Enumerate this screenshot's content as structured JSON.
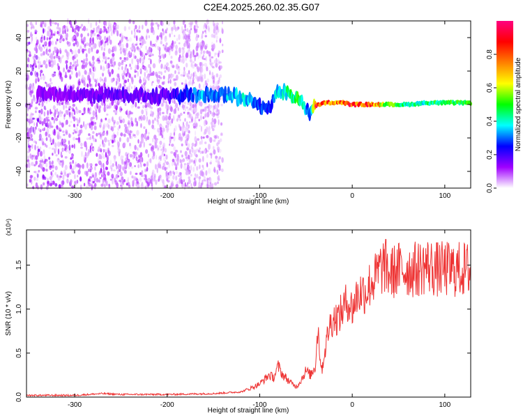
{
  "chart_data": [
    {
      "type": "heatmap",
      "title": "C2E4.2025.260.02.35.G07",
      "xlabel": "Height of straight line (km)",
      "ylabel": "Frequency (Hz)",
      "xlim": [
        -352,
        128
      ],
      "ylim": [
        -50,
        50
      ],
      "xticks": [
        -300,
        -200,
        -100,
        0,
        100
      ],
      "xtick_labels": [
        "-300",
        "-200",
        "-100",
        "0",
        "100"
      ],
      "yticks": [
        -40,
        -20,
        0,
        20,
        40
      ],
      "ytick_labels": [
        "-40",
        "-20",
        "0",
        "20",
        "40"
      ],
      "colorbar": {
        "label": "Normalized spectral amplitude",
        "range": [
          0.0,
          1.0
        ],
        "ticks": [
          0.0,
          0.2,
          0.4,
          0.6,
          0.8
        ],
        "tick_labels": [
          "0.0",
          "0.2",
          "0.4",
          "0.6",
          "0.8"
        ],
        "colors": [
          "#ffffff",
          "#a000ff",
          "#0000ff",
          "#00ffff",
          "#00ff00",
          "#ffff00",
          "#ff8000",
          "#ff0000",
          "#ff0080"
        ]
      },
      "ridge": {
        "x": [
          -340,
          -300,
          -260,
          -220,
          -200,
          -180,
          -160,
          -140,
          -120,
          -100,
          -90,
          -80,
          -70,
          -60,
          -55,
          -50,
          -45,
          -40,
          -30,
          -20,
          -10,
          0,
          20,
          40,
          60,
          80,
          100,
          120
        ],
        "freq": [
          6,
          6,
          6,
          5,
          5,
          6,
          6,
          6,
          4,
          0,
          -3,
          8,
          7,
          5,
          2,
          -2,
          -5,
          -1,
          1,
          1,
          1,
          0,
          0,
          0,
          0,
          1,
          1,
          1
        ],
        "amplitude": [
          0.15,
          0.15,
          0.18,
          0.18,
          0.2,
          0.28,
          0.35,
          0.35,
          0.4,
          0.3,
          0.25,
          0.4,
          0.45,
          0.5,
          0.45,
          0.35,
          0.3,
          0.9,
          0.85,
          0.8,
          0.85,
          0.9,
          0.9,
          0.55,
          0.45,
          0.45,
          0.55,
          0.5
        ]
      },
      "noise_extent_x": [
        -352,
        -140
      ]
    },
    {
      "type": "line",
      "xlabel": "Height of straight line (km)",
      "ylabel": "SNR (10 * v/v)",
      "scale_label": "(x10⁴)",
      "xlim": [
        -352,
        128
      ],
      "ylim": [
        0.0,
        1.9
      ],
      "xticks": [
        -300,
        -200,
        -100,
        0,
        100
      ],
      "xtick_labels": [
        "-300",
        "-200",
        "-100",
        "0",
        "100"
      ],
      "yticks": [
        0.0,
        0.5,
        1.0,
        1.5
      ],
      "ytick_labels": [
        "0.0",
        "0.5",
        "1.0",
        "1.5"
      ],
      "series": [
        {
          "name": "SNR",
          "color": "#ee3333",
          "x": [
            -352,
            -300,
            -270,
            -250,
            -200,
            -150,
            -120,
            -110,
            -100,
            -95,
            -90,
            -85,
            -80,
            -75,
            -70,
            -65,
            -60,
            -55,
            -50,
            -45,
            -40,
            -37,
            -35,
            -33,
            -30,
            -25,
            -20,
            -15,
            -10,
            -5,
            0,
            5,
            10,
            15,
            20,
            25,
            30,
            35,
            40,
            50,
            60,
            70,
            80,
            90,
            100,
            110,
            120,
            128
          ],
          "y": [
            0.02,
            0.02,
            0.04,
            0.03,
            0.03,
            0.04,
            0.06,
            0.1,
            0.15,
            0.2,
            0.25,
            0.22,
            0.35,
            0.25,
            0.2,
            0.15,
            0.12,
            0.2,
            0.3,
            0.25,
            0.35,
            0.8,
            0.5,
            0.3,
            0.5,
            0.8,
            0.9,
            0.9,
            1.0,
            1.1,
            1.0,
            1.15,
            1.2,
            1.2,
            1.3,
            1.35,
            1.45,
            1.5,
            1.4,
            1.45,
            1.45,
            1.45,
            1.5,
            1.45,
            1.45,
            1.45,
            1.45,
            1.45
          ]
        }
      ]
    }
  ]
}
